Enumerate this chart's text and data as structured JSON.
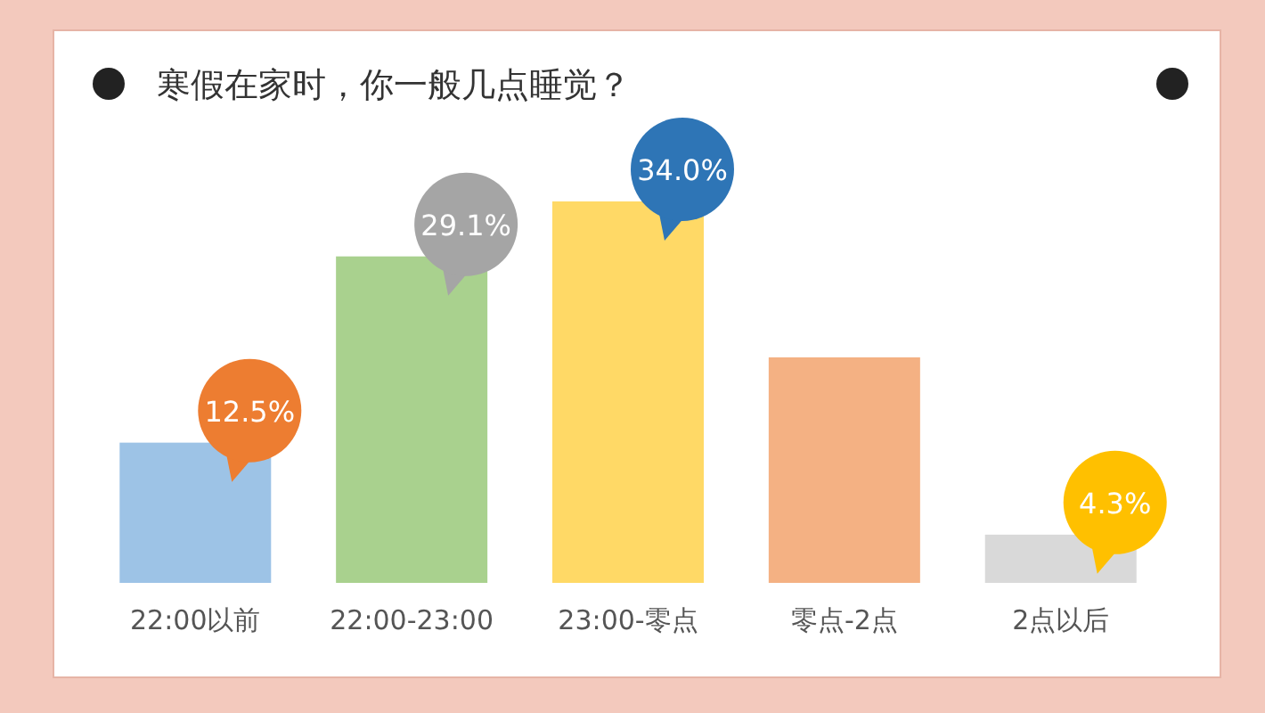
{
  "chart_data": {
    "type": "bar",
    "title": "寒假在家时，你一般几点睡觉？",
    "relative": false,
    "categories": [
      "22:00以前",
      "22:00-23:00",
      "23:00-零点",
      "零点-2点",
      "2点以后"
    ],
    "values": [
      12.5,
      29.1,
      34.0,
      20.1,
      4.3
    ],
    "colors": [
      "#9dc3e6",
      "#a9d18e",
      "#ffd966",
      "#f4b183",
      "#d9d9d9"
    ],
    "value_labels": [
      "12.5%",
      "29.1%",
      "34.0%",
      null,
      "4.3%"
    ]
  }
}
